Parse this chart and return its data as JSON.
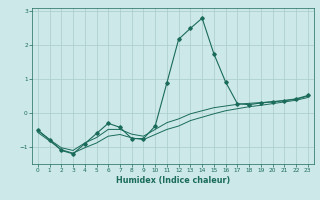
{
  "xlabel": "Humidex (Indice chaleur)",
  "ylabel": "",
  "background_color": "#cce8e8",
  "grid_color": "#aacccc",
  "line_color": "#1a6b5a",
  "x_humidex": [
    0,
    1,
    2,
    3,
    4,
    5,
    6,
    7,
    8,
    9,
    10,
    11,
    12,
    13,
    14,
    15,
    16,
    17,
    18,
    19,
    20,
    21,
    22,
    23
  ],
  "y_main": [
    -0.5,
    -0.78,
    -1.1,
    -1.2,
    -0.9,
    -0.6,
    -0.3,
    -0.42,
    -0.75,
    -0.75,
    -0.38,
    0.9,
    2.18,
    2.5,
    2.8,
    1.75,
    0.92,
    0.28,
    0.25,
    0.3,
    0.33,
    0.37,
    0.42,
    0.52
  ],
  "y_line1": [
    -0.52,
    -0.78,
    -1.02,
    -1.1,
    -0.88,
    -0.72,
    -0.48,
    -0.48,
    -0.62,
    -0.68,
    -0.48,
    -0.28,
    -0.17,
    -0.02,
    0.07,
    0.16,
    0.21,
    0.26,
    0.29,
    0.31,
    0.34,
    0.37,
    0.41,
    0.5
  ],
  "y_line2": [
    -0.57,
    -0.82,
    -1.08,
    -1.18,
    -1.02,
    -0.88,
    -0.68,
    -0.63,
    -0.73,
    -0.78,
    -0.63,
    -0.48,
    -0.38,
    -0.22,
    -0.12,
    -0.02,
    0.07,
    0.13,
    0.19,
    0.23,
    0.28,
    0.33,
    0.38,
    0.46
  ],
  "ylim": [
    -1.5,
    3.1
  ],
  "yticks": [
    -1,
    0,
    1,
    2,
    3
  ],
  "xticks": [
    0,
    1,
    2,
    3,
    4,
    5,
    6,
    7,
    8,
    9,
    10,
    11,
    12,
    13,
    14,
    15,
    16,
    17,
    18,
    19,
    20,
    21,
    22,
    23
  ]
}
